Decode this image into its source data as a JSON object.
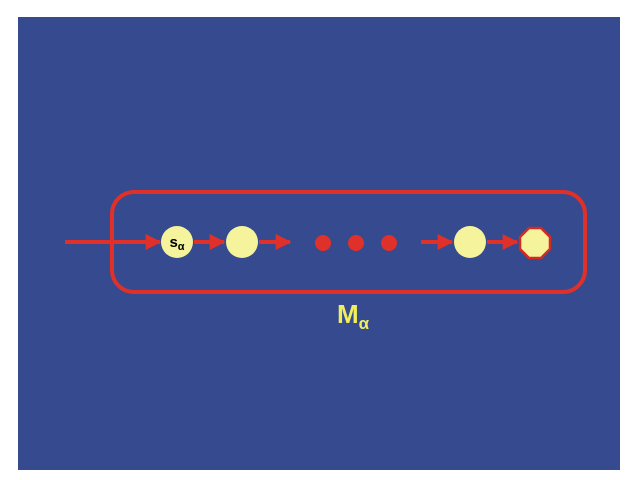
{
  "diagram": {
    "start_state": {
      "symbol": "s",
      "subscript": "α"
    },
    "machine": {
      "symbol": "M",
      "subscript": "α"
    }
  },
  "colors": {
    "background": "#354a8f",
    "state_fill": "#f5f39b",
    "arrow": "#e0302a",
    "final_state_outline": "#d32a24",
    "label": "#f0ee5a"
  }
}
